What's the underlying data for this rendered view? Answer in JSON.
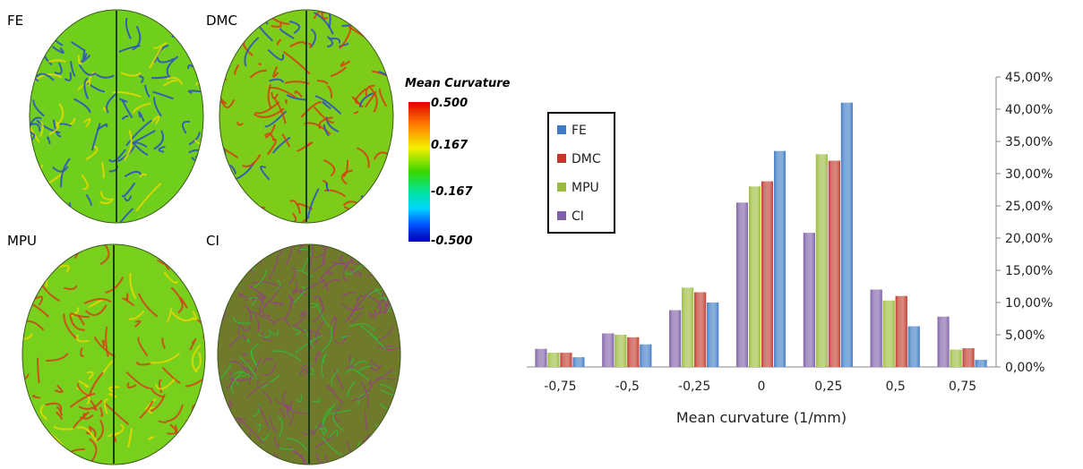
{
  "panels": [
    {
      "label": "FE",
      "fill": "#6fcf1c",
      "vein": "#2a4cc8",
      "speck": "#e8d800"
    },
    {
      "label": "DMC",
      "fill": "#7dcc1a",
      "vein": "#d83a10",
      "speck": "#2a4cc8"
    },
    {
      "label": "MPU",
      "fill": "#78cf1c",
      "vein": "#d4401a",
      "speck": "#e8d800"
    },
    {
      "label": "CI",
      "fill": "#6f7a2a",
      "vein": "#9a3c8c",
      "speck": "#2fbf3a"
    }
  ],
  "colorbar": {
    "title": "Mean Curvature",
    "ticks": [
      "0.500",
      "0.167",
      "-0.167",
      "-0.500"
    ]
  },
  "chart_data": {
    "type": "bar",
    "categories": [
      "-0,75",
      "-0,5",
      "-0,25",
      "0",
      "0,25",
      "0,5",
      "0,75"
    ],
    "xlabel": "Mean curvature (1/mm)",
    "ylabel": "",
    "ylim": [
      0,
      45
    ],
    "yticks": [
      "0,00%",
      "5,00%",
      "10,00%",
      "15,00%",
      "20,00%",
      "25,00%",
      "30,00%",
      "35,00%",
      "40,00%",
      "45,00%"
    ],
    "y_axis_side": "right",
    "legend_position": "upper-left",
    "series": [
      {
        "name": "CI",
        "color": "#7f5fa8",
        "values": [
          2.8,
          5.2,
          8.8,
          25.5,
          20.8,
          12.0,
          7.8
        ]
      },
      {
        "name": "MPU",
        "color": "#9bbb3c",
        "values": [
          2.2,
          5.0,
          12.3,
          28.0,
          33.0,
          10.3,
          2.7
        ]
      },
      {
        "name": "DMC",
        "color": "#c0392b",
        "values": [
          2.2,
          4.6,
          11.6,
          28.8,
          32.0,
          11.0,
          2.9
        ]
      },
      {
        "name": "FE",
        "color": "#3f7bc4",
        "values": [
          1.5,
          3.5,
          10.0,
          33.5,
          41.0,
          6.3,
          1.1
        ]
      }
    ],
    "legend_order": [
      "FE",
      "DMC",
      "MPU",
      "CI"
    ]
  }
}
